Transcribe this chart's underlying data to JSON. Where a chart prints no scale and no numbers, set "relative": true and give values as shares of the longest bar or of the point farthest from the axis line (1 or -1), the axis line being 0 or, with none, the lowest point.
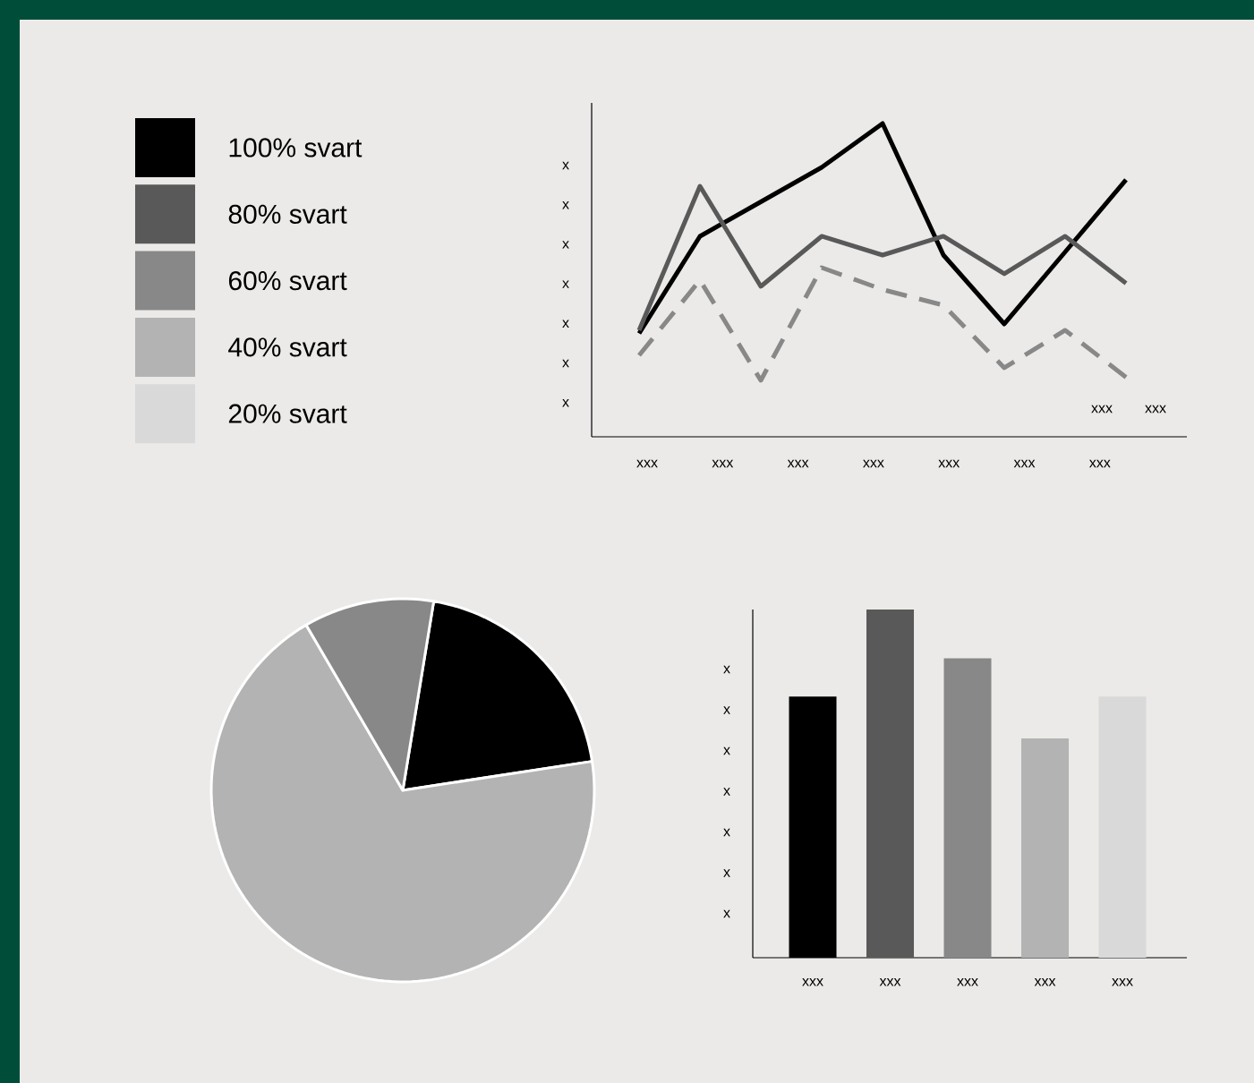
{
  "chart_data": [
    {
      "type": "other",
      "annotations": [
        "100% svart",
        "80% svart",
        "60% svart",
        "40% svart",
        "20% svart"
      ],
      "colors": [
        "#000000",
        "#595959",
        "#888888",
        "#b3b3b3",
        "#d9d9d9"
      ]
    },
    {
      "type": "line",
      "relative": true,
      "categories": [
        null,
        null,
        null,
        null,
        null,
        null,
        null,
        null,
        null
      ],
      "series": [
        {
          "color": "#000000",
          "line_style": "solid",
          "values": [
            0.33,
            0.64,
            0.75,
            0.86,
            1.0,
            0.58,
            0.36,
            0.59,
            0.82
          ]
        },
        {
          "color": "#595959",
          "line_style": "solid",
          "values": [
            0.34,
            0.8,
            0.48,
            0.64,
            0.58,
            0.64,
            0.52,
            0.64,
            0.49
          ]
        },
        {
          "color": "#888888",
          "line_style": "dashed",
          "values": [
            0.26,
            0.5,
            0.18,
            0.54,
            0.47,
            0.42,
            0.22,
            0.34,
            0.19
          ]
        }
      ],
      "annotations": [
        "x",
        "x",
        "x",
        "x",
        "x",
        "x",
        "x",
        "xxx",
        "xxx",
        "xxx",
        "xxx",
        "xxx",
        "xxx",
        "xxx",
        "xxx",
        "xxx"
      ]
    },
    {
      "type": "pie",
      "categories": [
        null,
        null,
        null
      ],
      "values": [
        20,
        69,
        11
      ],
      "colors": [
        "#000000",
        "#b3b3b3",
        "#888888"
      ]
    },
    {
      "type": "bar",
      "relative": true,
      "categories": [
        "xxx",
        "xxx",
        "xxx",
        "xxx",
        "xxx"
      ],
      "values": [
        0.75,
        1.0,
        0.86,
        0.63,
        0.75
      ],
      "colors": [
        "#000000",
        "#595959",
        "#888888",
        "#b3b3b3",
        "#d9d9d9"
      ],
      "annotations": [
        "x",
        "x",
        "x",
        "x",
        "x",
        "x",
        "x"
      ]
    }
  ]
}
